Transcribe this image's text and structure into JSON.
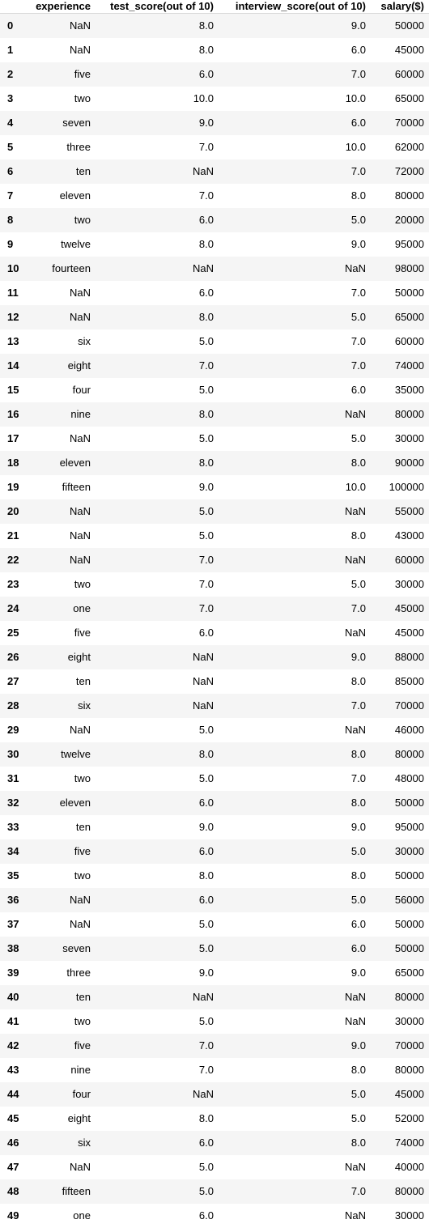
{
  "table": {
    "columns": [
      "",
      "experience",
      "test_score(out of 10)",
      "interview_score(out of 10)",
      "salary($)"
    ],
    "rows": [
      [
        "0",
        "NaN",
        "8.0",
        "9.0",
        "50000"
      ],
      [
        "1",
        "NaN",
        "8.0",
        "6.0",
        "45000"
      ],
      [
        "2",
        "five",
        "6.0",
        "7.0",
        "60000"
      ],
      [
        "3",
        "two",
        "10.0",
        "10.0",
        "65000"
      ],
      [
        "4",
        "seven",
        "9.0",
        "6.0",
        "70000"
      ],
      [
        "5",
        "three",
        "7.0",
        "10.0",
        "62000"
      ],
      [
        "6",
        "ten",
        "NaN",
        "7.0",
        "72000"
      ],
      [
        "7",
        "eleven",
        "7.0",
        "8.0",
        "80000"
      ],
      [
        "8",
        "two",
        "6.0",
        "5.0",
        "20000"
      ],
      [
        "9",
        "twelve",
        "8.0",
        "9.0",
        "95000"
      ],
      [
        "10",
        "fourteen",
        "NaN",
        "NaN",
        "98000"
      ],
      [
        "11",
        "NaN",
        "6.0",
        "7.0",
        "50000"
      ],
      [
        "12",
        "NaN",
        "8.0",
        "5.0",
        "65000"
      ],
      [
        "13",
        "six",
        "5.0",
        "7.0",
        "60000"
      ],
      [
        "14",
        "eight",
        "7.0",
        "7.0",
        "74000"
      ],
      [
        "15",
        "four",
        "5.0",
        "6.0",
        "35000"
      ],
      [
        "16",
        "nine",
        "8.0",
        "NaN",
        "80000"
      ],
      [
        "17",
        "NaN",
        "5.0",
        "5.0",
        "30000"
      ],
      [
        "18",
        "eleven",
        "8.0",
        "8.0",
        "90000"
      ],
      [
        "19",
        "fifteen",
        "9.0",
        "10.0",
        "100000"
      ],
      [
        "20",
        "NaN",
        "5.0",
        "NaN",
        "55000"
      ],
      [
        "21",
        "NaN",
        "5.0",
        "8.0",
        "43000"
      ],
      [
        "22",
        "NaN",
        "7.0",
        "NaN",
        "60000"
      ],
      [
        "23",
        "two",
        "7.0",
        "5.0",
        "30000"
      ],
      [
        "24",
        "one",
        "7.0",
        "7.0",
        "45000"
      ],
      [
        "25",
        "five",
        "6.0",
        "NaN",
        "45000"
      ],
      [
        "26",
        "eight",
        "NaN",
        "9.0",
        "88000"
      ],
      [
        "27",
        "ten",
        "NaN",
        "8.0",
        "85000"
      ],
      [
        "28",
        "six",
        "NaN",
        "7.0",
        "70000"
      ],
      [
        "29",
        "NaN",
        "5.0",
        "NaN",
        "46000"
      ],
      [
        "30",
        "twelve",
        "8.0",
        "8.0",
        "80000"
      ],
      [
        "31",
        "two",
        "5.0",
        "7.0",
        "48000"
      ],
      [
        "32",
        "eleven",
        "6.0",
        "8.0",
        "50000"
      ],
      [
        "33",
        "ten",
        "9.0",
        "9.0",
        "95000"
      ],
      [
        "34",
        "five",
        "6.0",
        "5.0",
        "30000"
      ],
      [
        "35",
        "two",
        "8.0",
        "8.0",
        "50000"
      ],
      [
        "36",
        "NaN",
        "6.0",
        "5.0",
        "56000"
      ],
      [
        "37",
        "NaN",
        "5.0",
        "6.0",
        "50000"
      ],
      [
        "38",
        "seven",
        "5.0",
        "6.0",
        "50000"
      ],
      [
        "39",
        "three",
        "9.0",
        "9.0",
        "65000"
      ],
      [
        "40",
        "ten",
        "NaN",
        "NaN",
        "80000"
      ],
      [
        "41",
        "two",
        "5.0",
        "NaN",
        "30000"
      ],
      [
        "42",
        "five",
        "7.0",
        "9.0",
        "70000"
      ],
      [
        "43",
        "nine",
        "7.0",
        "8.0",
        "80000"
      ],
      [
        "44",
        "four",
        "NaN",
        "5.0",
        "45000"
      ],
      [
        "45",
        "eight",
        "8.0",
        "5.0",
        "52000"
      ],
      [
        "46",
        "six",
        "6.0",
        "8.0",
        "74000"
      ],
      [
        "47",
        "NaN",
        "5.0",
        "NaN",
        "40000"
      ],
      [
        "48",
        "fifteen",
        "5.0",
        "7.0",
        "80000"
      ],
      [
        "49",
        "one",
        "6.0",
        "NaN",
        "30000"
      ]
    ]
  }
}
